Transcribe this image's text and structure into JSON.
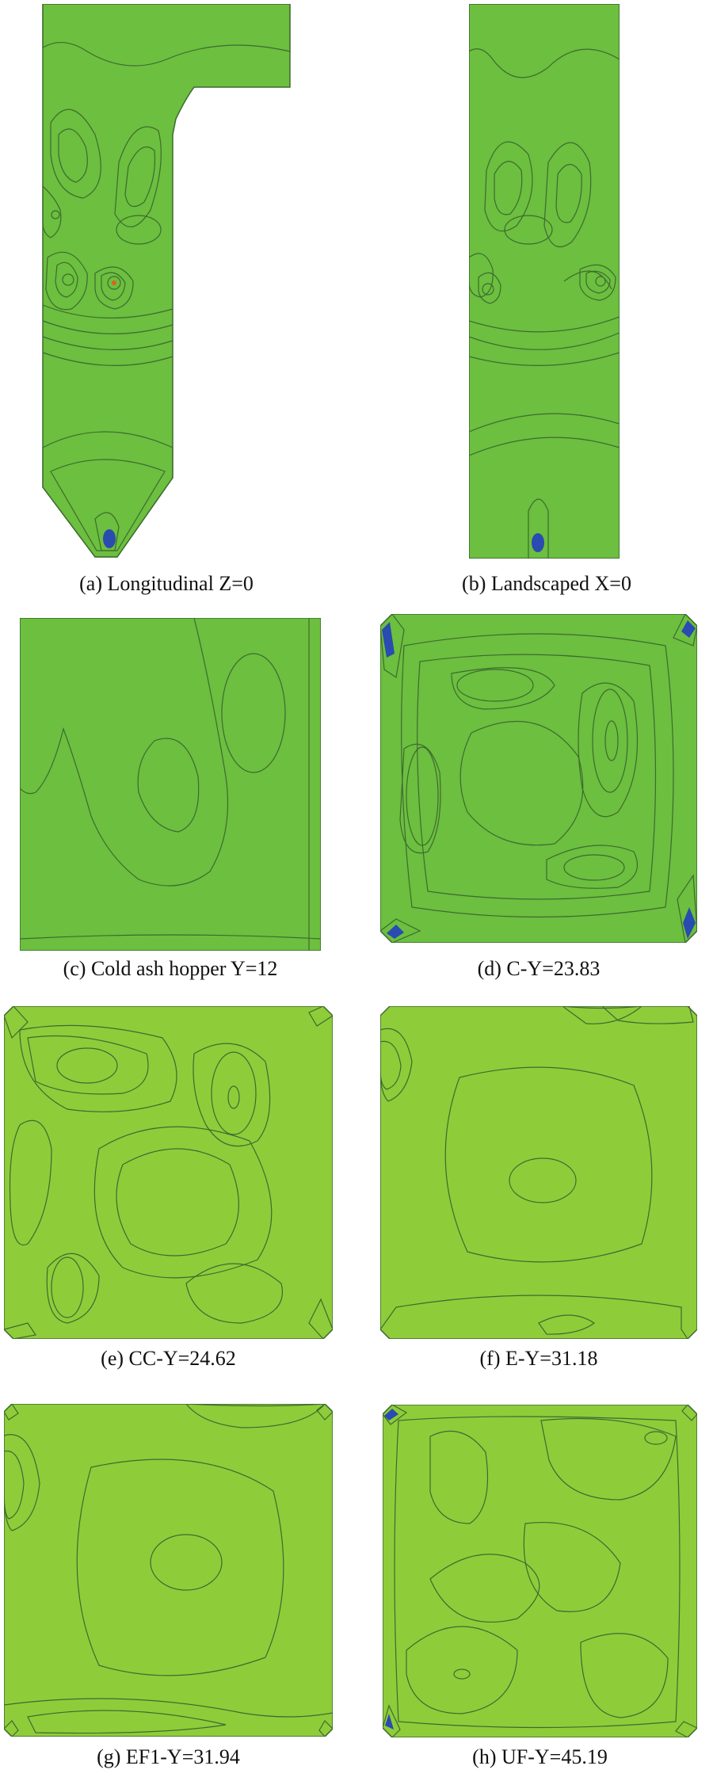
{
  "figure": {
    "colors": {
      "base_green": "#6cbf3f",
      "light_green": "#8fcc3a",
      "yellow_green": "#c6e236",
      "yellow": "#f4ee22",
      "orange": "#f6a11e",
      "red_orange": "#e0611e",
      "teal": "#5fc3a8",
      "cyan": "#4cb8d9",
      "blue": "#2a4bb0",
      "pale_green": "#74c26a",
      "mid_green": "#62b44a",
      "contour_line": "#3d6b2f"
    },
    "panels": [
      {
        "id": "a",
        "caption": "(a) Longitudinal Z=0"
      },
      {
        "id": "b",
        "caption": "(b) Landscaped X=0"
      },
      {
        "id": "c",
        "caption": "(c) Cold ash hopper Y=12"
      },
      {
        "id": "d",
        "caption": "(d) C-Y=23.83"
      },
      {
        "id": "e",
        "caption": "(e) CC-Y=24.62"
      },
      {
        "id": "f",
        "caption": "(f) E-Y=31.18"
      },
      {
        "id": "g",
        "caption": "(g) EF1-Y=31.94"
      },
      {
        "id": "h",
        "caption": "(h) UF-Y=45.19"
      }
    ]
  }
}
